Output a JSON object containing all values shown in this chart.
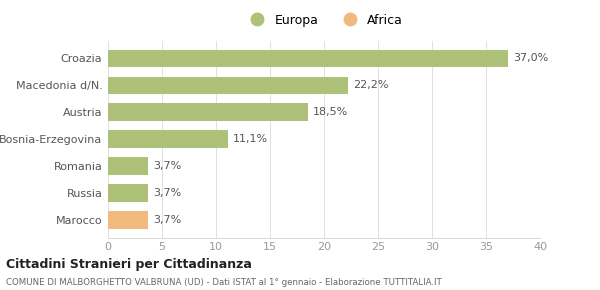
{
  "categories": [
    "Marocco",
    "Russia",
    "Romania",
    "Bosnia-Erzegovina",
    "Austria",
    "Macedonia d/N.",
    "Croazia"
  ],
  "values": [
    3.7,
    3.7,
    3.7,
    11.1,
    18.5,
    22.2,
    37.0
  ],
  "labels": [
    "3,7%",
    "3,7%",
    "3,7%",
    "11,1%",
    "18,5%",
    "22,2%",
    "37,0%"
  ],
  "colors": [
    "#f0b97d",
    "#adc178",
    "#adc178",
    "#adc178",
    "#adc178",
    "#adc178",
    "#adc178"
  ],
  "legend": [
    {
      "label": "Europa",
      "color": "#adc178"
    },
    {
      "label": "Africa",
      "color": "#f0b97d"
    }
  ],
  "xlim": [
    0,
    40
  ],
  "xticks": [
    0,
    5,
    10,
    15,
    20,
    25,
    30,
    35,
    40
  ],
  "title": "Cittadini Stranieri per Cittadinanza",
  "subtitle": "COMUNE DI MALBORGHETTO VALBRUNA (UD) - Dati ISTAT al 1° gennaio - Elaborazione TUTTITALIA.IT",
  "bg_color": "#ffffff",
  "bar_height": 0.65,
  "label_fontsize": 8,
  "tick_fontsize": 8
}
